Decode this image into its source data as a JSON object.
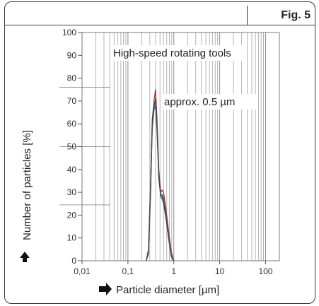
{
  "figure": {
    "label": "Fig. 5"
  },
  "chart_data": {
    "type": "line",
    "title": "High-speed rotating tools",
    "annotation": "approx. 0.5 µm",
    "xlabel": "Particle diameter [µm]",
    "ylabel": "Number of particles [%]",
    "x_scale": "log",
    "xlim": [
      0.01,
      200
    ],
    "ylim": [
      0,
      100
    ],
    "x_ticks": [
      0.01,
      0.1,
      1,
      10,
      100
    ],
    "x_tick_labels": [
      "0,01",
      "0,1",
      "1",
      "10",
      "100"
    ],
    "y_ticks": [
      0,
      10,
      20,
      30,
      40,
      50,
      60,
      70,
      80,
      90,
      100
    ],
    "y_tick_labels": [
      "0",
      "10",
      "20",
      "30",
      "40",
      "50",
      "60",
      "70",
      "80",
      "90",
      "100"
    ],
    "grid": true,
    "colors": {
      "red": "#c0282f",
      "blue": "#2f5fa8",
      "green": "#2f8a4a",
      "dark": "#444444"
    },
    "series": [
      {
        "color": "#c0282f",
        "x": [
          0.25,
          0.28,
          0.31,
          0.34,
          0.37,
          0.4,
          0.43,
          0.47,
          0.52,
          0.56,
          0.6,
          0.68,
          0.78,
          0.88,
          1.0
        ],
        "y": [
          0,
          5,
          32,
          62,
          70,
          75,
          62,
          40,
          30,
          31,
          30,
          22,
          12,
          4,
          0
        ]
      },
      {
        "color": "#2f5fa8",
        "x": [
          0.25,
          0.28,
          0.31,
          0.34,
          0.37,
          0.4,
          0.43,
          0.47,
          0.52,
          0.56,
          0.6,
          0.68,
          0.78,
          0.88,
          1.0
        ],
        "y": [
          0,
          3,
          28,
          58,
          66,
          68,
          57,
          36,
          28,
          27,
          25,
          18,
          9,
          2,
          0
        ]
      },
      {
        "color": "#2f8a4a",
        "x": [
          0.25,
          0.28,
          0.31,
          0.34,
          0.37,
          0.4,
          0.43,
          0.47,
          0.52,
          0.56,
          0.6,
          0.68,
          0.78,
          0.88,
          1.0
        ],
        "y": [
          0,
          4,
          30,
          60,
          69,
          70,
          60,
          38,
          29,
          29,
          27,
          20,
          10,
          3,
          0
        ]
      },
      {
        "color": "#444444",
        "x": [
          0.25,
          0.28,
          0.31,
          0.34,
          0.37,
          0.4,
          0.43,
          0.47,
          0.52,
          0.56,
          0.6,
          0.68,
          0.78,
          0.88,
          1.0
        ],
        "y": [
          0,
          4,
          30,
          61,
          67,
          71,
          59,
          37,
          29,
          28,
          26,
          19,
          10,
          2,
          0
        ]
      }
    ]
  }
}
